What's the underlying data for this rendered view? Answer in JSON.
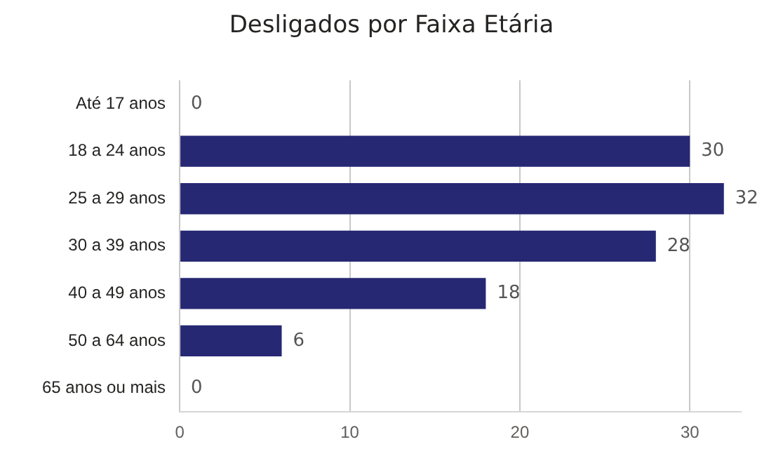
{
  "chart_data": {
    "type": "bar",
    "orientation": "horizontal",
    "title": "Desligados por Faixa Etária",
    "categories": [
      "Até 17 anos",
      "18 a 24 anos",
      "25 a 29 anos",
      "30 a 39 anos",
      "40 a 49 anos",
      "50 a 64 anos",
      "65 anos ou mais"
    ],
    "values": [
      0,
      30,
      32,
      28,
      18,
      6,
      0
    ],
    "color": "#262873",
    "xlim": [
      0,
      33
    ],
    "xticks": [
      0,
      10,
      20,
      30
    ],
    "grid": "x",
    "data_labels": true,
    "legend": false
  }
}
